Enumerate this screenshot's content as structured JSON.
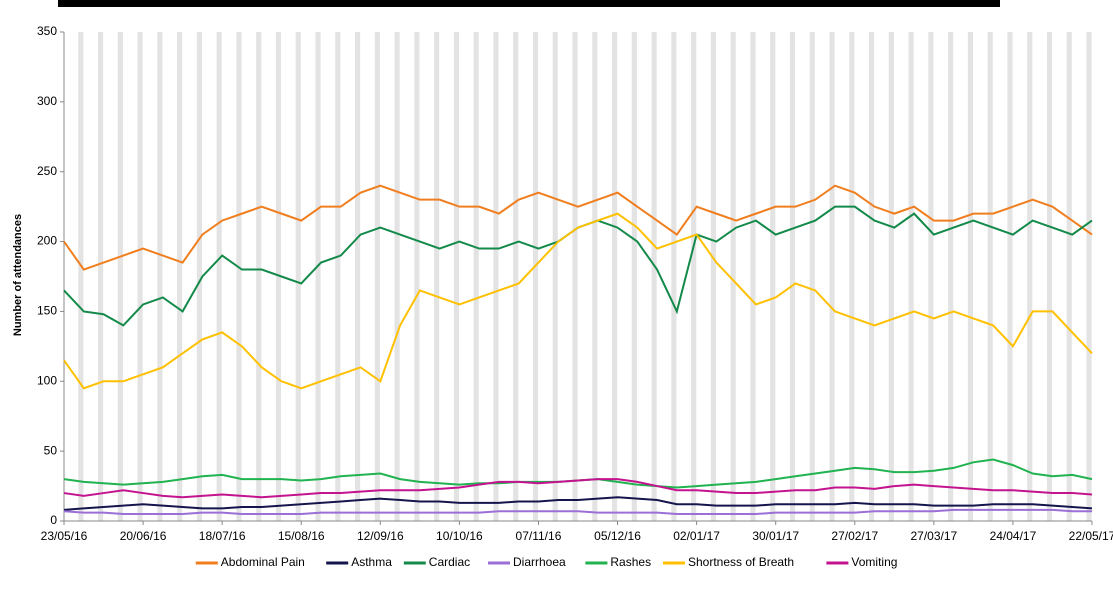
{
  "chart_data": {
    "type": "line",
    "y_label": "Number of attendances",
    "x": [
      "23/05/16",
      "30/05/16",
      "06/06/16",
      "13/06/16",
      "20/06/16",
      "27/06/16",
      "04/07/16",
      "11/07/16",
      "18/07/16",
      "25/07/16",
      "01/08/16",
      "08/08/16",
      "15/08/16",
      "22/08/16",
      "29/08/16",
      "05/09/16",
      "12/09/16",
      "19/09/16",
      "26/09/16",
      "03/10/16",
      "10/10/16",
      "17/10/16",
      "24/10/16",
      "31/10/16",
      "07/11/16",
      "14/11/16",
      "21/11/16",
      "28/11/16",
      "05/12/16",
      "12/12/16",
      "19/12/16",
      "26/12/16",
      "02/01/17",
      "09/01/17",
      "16/01/17",
      "23/01/17",
      "30/01/17",
      "06/02/17",
      "13/02/17",
      "20/02/17",
      "27/02/17",
      "06/03/17",
      "13/03/17",
      "20/03/17",
      "27/03/17",
      "03/04/17",
      "10/04/17",
      "17/04/17",
      "24/04/17",
      "01/05/17",
      "08/05/17",
      "15/05/17",
      "22/05/17"
    ],
    "xticks": [
      "23/05/16",
      "20/06/16",
      "18/07/16",
      "15/08/16",
      "12/09/16",
      "10/10/16",
      "07/11/16",
      "05/12/16",
      "02/01/17",
      "30/01/17",
      "27/02/17",
      "27/03/17",
      "24/04/17",
      "22/05/17"
    ],
    "ylim": [
      0,
      350
    ],
    "yticks": [
      0,
      50,
      100,
      150,
      200,
      250,
      300,
      350
    ],
    "legend": "bottom",
    "series": [
      {
        "name": "Abdominal Pain",
        "color": "#f07e1f",
        "values": [
          200,
          180,
          185,
          190,
          195,
          190,
          185,
          205,
          215,
          220,
          225,
          220,
          215,
          225,
          225,
          235,
          240,
          235,
          230,
          230,
          225,
          225,
          220,
          230,
          235,
          230,
          225,
          230,
          235,
          225,
          215,
          205,
          225,
          220,
          215,
          220,
          225,
          225,
          230,
          240,
          235,
          225,
          220,
          225,
          215,
          215,
          220,
          220,
          225,
          230,
          225,
          215,
          205
        ]
      },
      {
        "name": "Asthma",
        "color": "#15154d",
        "values": [
          8,
          9,
          10,
          11,
          12,
          11,
          10,
          9,
          9,
          10,
          10,
          11,
          12,
          13,
          14,
          15,
          16,
          15,
          14,
          14,
          13,
          13,
          13,
          14,
          14,
          15,
          15,
          16,
          17,
          16,
          15,
          12,
          12,
          11,
          11,
          11,
          12,
          12,
          12,
          12,
          13,
          12,
          12,
          12,
          11,
          11,
          11,
          12,
          12,
          12,
          11,
          10,
          9
        ]
      },
      {
        "name": "Cardiac",
        "color": "#138a4a",
        "values": [
          165,
          150,
          148,
          140,
          155,
          160,
          150,
          175,
          190,
          180,
          180,
          175,
          170,
          185,
          190,
          205,
          210,
          205,
          200,
          195,
          200,
          195,
          195,
          200,
          195,
          200,
          210,
          215,
          210,
          200,
          180,
          150,
          205,
          200,
          210,
          215,
          205,
          210,
          215,
          225,
          225,
          215,
          210,
          220,
          205,
          210,
          215,
          210,
          205,
          215,
          210,
          205,
          215
        ]
      },
      {
        "name": "Diarrhoea",
        "color": "#9b6fd6",
        "values": [
          7,
          6,
          6,
          5,
          5,
          5,
          5,
          6,
          6,
          5,
          5,
          5,
          5,
          6,
          6,
          6,
          6,
          6,
          6,
          6,
          6,
          6,
          7,
          7,
          7,
          7,
          7,
          6,
          6,
          6,
          6,
          5,
          5,
          5,
          5,
          5,
          6,
          6,
          6,
          6,
          6,
          7,
          7,
          7,
          7,
          8,
          8,
          8,
          8,
          8,
          8,
          7,
          7
        ]
      },
      {
        "name": "Rashes",
        "color": "#20b34f",
        "values": [
          30,
          28,
          27,
          26,
          27,
          28,
          30,
          32,
          33,
          30,
          30,
          30,
          29,
          30,
          32,
          33,
          34,
          30,
          28,
          27,
          26,
          27,
          27,
          28,
          28,
          28,
          29,
          30,
          28,
          26,
          25,
          24,
          25,
          26,
          27,
          28,
          30,
          32,
          34,
          36,
          38,
          37,
          35,
          35,
          36,
          38,
          42,
          44,
          40,
          34,
          32,
          33,
          30
        ]
      },
      {
        "name": "Shortness of Breath",
        "color": "#ffc000",
        "values": [
          115,
          95,
          100,
          100,
          105,
          110,
          120,
          130,
          135,
          125,
          110,
          100,
          95,
          100,
          105,
          110,
          100,
          140,
          165,
          160,
          155,
          160,
          165,
          170,
          185,
          200,
          210,
          215,
          220,
          210,
          195,
          200,
          205,
          185,
          170,
          155,
          160,
          170,
          165,
          150,
          145,
          140,
          145,
          150,
          145,
          150,
          145,
          140,
          125,
          150,
          150,
          135,
          120
        ]
      },
      {
        "name": "Vomiting",
        "color": "#c4138f",
        "values": [
          20,
          18,
          20,
          22,
          20,
          18,
          17,
          18,
          19,
          18,
          17,
          18,
          19,
          20,
          20,
          21,
          22,
          22,
          22,
          23,
          24,
          26,
          28,
          28,
          27,
          28,
          29,
          30,
          30,
          28,
          25,
          22,
          22,
          21,
          20,
          20,
          21,
          22,
          22,
          24,
          24,
          23,
          25,
          26,
          25,
          24,
          23,
          22,
          22,
          21,
          20,
          20,
          19
        ]
      }
    ]
  }
}
